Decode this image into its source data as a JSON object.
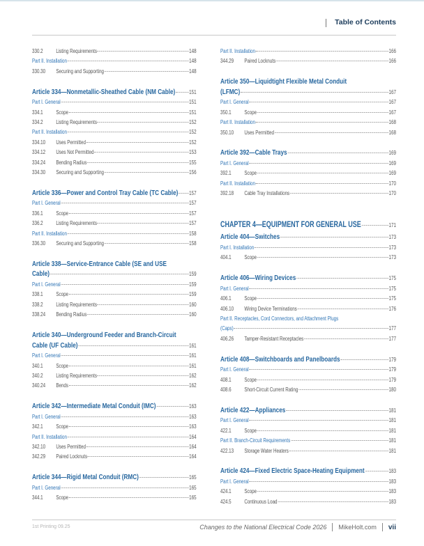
{
  "header": {
    "title": "Table of Contents"
  },
  "left_column": [
    {
      "type": "entry",
      "num": "330.2",
      "title": "Listing Requirements",
      "page": "148"
    },
    {
      "type": "part",
      "title": "Part II. Installation",
      "page": "148"
    },
    {
      "type": "entry",
      "num": "330.30",
      "title": "Securing and Supporting",
      "page": "148"
    },
    {
      "type": "article",
      "lines": [
        "Article 334—Nonmetallic-Sheathed Cable (NM Cable)"
      ],
      "page": "151"
    },
    {
      "type": "part",
      "title": "Part I. General",
      "page": "151"
    },
    {
      "type": "entry",
      "num": "334.1",
      "title": "Scope",
      "page": "151"
    },
    {
      "type": "entry",
      "num": "334.2",
      "title": "Listing Requirements",
      "page": "152"
    },
    {
      "type": "part",
      "title": "Part II. Installation",
      "page": "152"
    },
    {
      "type": "entry",
      "num": "334.10",
      "title": "Uses Permitted",
      "page": "152"
    },
    {
      "type": "entry",
      "num": "334.12",
      "title": "Uses Not Permitted",
      "page": "153"
    },
    {
      "type": "entry",
      "num": "334.24",
      "title": "Bending Radius",
      "page": "155"
    },
    {
      "type": "entry",
      "num": "334.30",
      "title": "Securing and Supporting",
      "page": "156"
    },
    {
      "type": "article",
      "lines": [
        "Article 336—Power and Control Tray Cable (TC Cable)"
      ],
      "page": "157"
    },
    {
      "type": "part",
      "title": "Part I. General",
      "page": "157"
    },
    {
      "type": "entry",
      "num": "336.1",
      "title": "Scope",
      "page": "157"
    },
    {
      "type": "entry",
      "num": "336.2",
      "title": "Listing Requirements",
      "page": "157"
    },
    {
      "type": "part",
      "title": "Part II. Installation",
      "page": "158"
    },
    {
      "type": "entry",
      "num": "336.30",
      "title": "Securing and Supporting",
      "page": "158"
    },
    {
      "type": "article",
      "lines": [
        "Article 338—Service-Entrance Cable (SE and USE",
        "Cable)"
      ],
      "page": "159"
    },
    {
      "type": "part",
      "title": "Part I. General",
      "page": "159"
    },
    {
      "type": "entry",
      "num": "338.1",
      "title": "Scope",
      "page": "159"
    },
    {
      "type": "entry",
      "num": "338.2",
      "title": "Listing Requirements",
      "page": "160"
    },
    {
      "type": "entry",
      "num": "338.24",
      "title": "Bending Radius",
      "page": "160"
    },
    {
      "type": "article",
      "lines": [
        "Article 340—Underground Feeder and Branch-Circuit",
        "Cable (UF Cable)"
      ],
      "page": "161"
    },
    {
      "type": "part",
      "title": "Part I. General",
      "page": "161"
    },
    {
      "type": "entry",
      "num": "340.1",
      "title": "Scope",
      "page": "161"
    },
    {
      "type": "entry",
      "num": "340.2",
      "title": "Listing Requirements",
      "page": "162"
    },
    {
      "type": "entry",
      "num": "340.24",
      "title": "Bends",
      "page": "162"
    },
    {
      "type": "article",
      "lines": [
        "Article 342—Intermediate Metal Conduit (IMC)"
      ],
      "page": "163"
    },
    {
      "type": "part",
      "title": "Part I. General",
      "page": "163"
    },
    {
      "type": "entry",
      "num": "342.1",
      "title": "Scope",
      "page": "163"
    },
    {
      "type": "part",
      "title": "Part II. Installation",
      "page": "164"
    },
    {
      "type": "entry",
      "num": "342.10",
      "title": "Uses Permitted",
      "page": "164"
    },
    {
      "type": "entry",
      "num": "342.29",
      "title": "Paired Locknuts",
      "page": "164"
    },
    {
      "type": "article",
      "lines": [
        "Article 344—Rigid Metal Conduit (RMC)"
      ],
      "page": "165"
    },
    {
      "type": "part",
      "title": "Part I. General",
      "page": "165"
    },
    {
      "type": "entry",
      "num": "344.1",
      "title": "Scope",
      "page": "165"
    }
  ],
  "right_column": [
    {
      "type": "part",
      "title": "Part II. Installation",
      "page": "166"
    },
    {
      "type": "entry",
      "num": "344.29",
      "title": "Paired Locknuts",
      "page": "166"
    },
    {
      "type": "article",
      "lines": [
        "Article 350—Liquidtight Flexible Metal Conduit",
        "(LFMC)"
      ],
      "page": "167"
    },
    {
      "type": "part",
      "title": "Part I. General",
      "page": "167"
    },
    {
      "type": "entry",
      "num": "350.1",
      "title": "Scope",
      "page": "167"
    },
    {
      "type": "part",
      "title": "Part II. Installation",
      "page": "168"
    },
    {
      "type": "entry",
      "num": "350.10",
      "title": "Uses Permitted",
      "page": "168"
    },
    {
      "type": "article",
      "lines": [
        "Article 392—Cable Trays"
      ],
      "page": "169"
    },
    {
      "type": "part",
      "title": "Part I. General",
      "page": "169"
    },
    {
      "type": "entry",
      "num": "392.1",
      "title": "Scope",
      "page": "169"
    },
    {
      "type": "part",
      "title": "Part II. Installation",
      "page": "170"
    },
    {
      "type": "entry",
      "num": "392.18",
      "title": "Cable Tray Installations",
      "page": "170"
    },
    {
      "type": "chapter",
      "title": "CHAPTER 4—EQUIPMENT FOR GENERAL USE",
      "page": "171"
    },
    {
      "type": "article",
      "lines": [
        "Article 404—Switches"
      ],
      "page": "173",
      "nogap": true
    },
    {
      "type": "part",
      "title": "Part I. Installation",
      "page": "173"
    },
    {
      "type": "entry",
      "num": "404.1",
      "title": "Scope",
      "page": "173"
    },
    {
      "type": "article",
      "lines": [
        "Article 406—Wiring Devices"
      ],
      "page": "175"
    },
    {
      "type": "part",
      "title": "Part I. General",
      "page": "175"
    },
    {
      "type": "entry",
      "num": "406.1",
      "title": "Scope",
      "page": "175"
    },
    {
      "type": "entry",
      "num": "406.10",
      "title": "Wiring Device Terminations",
      "page": "176"
    },
    {
      "type": "part",
      "lines": [
        "Part II. Receptacles, Cord Connectors, and Attachment Plugs",
        "(Caps)"
      ],
      "page": "177"
    },
    {
      "type": "entry",
      "num": "406.26",
      "title": "Tamper-Resistant Receptacles",
      "page": "177"
    },
    {
      "type": "article",
      "lines": [
        "Article 408—Switchboards and Panelboards"
      ],
      "page": "179"
    },
    {
      "type": "part",
      "title": "Part I. General",
      "page": "179"
    },
    {
      "type": "entry",
      "num": "408.1",
      "title": "Scope",
      "page": "179"
    },
    {
      "type": "entry",
      "num": "408.6",
      "title": "Short-Circuit Current Rating",
      "page": "180"
    },
    {
      "type": "article",
      "lines": [
        "Article 422—Appliances"
      ],
      "page": "181"
    },
    {
      "type": "part",
      "title": "Part I. General",
      "page": "181"
    },
    {
      "type": "entry",
      "num": "422.1",
      "title": "Scope",
      "page": "181"
    },
    {
      "type": "part",
      "title": "Part II. Branch-Circuit Requirements",
      "page": "181"
    },
    {
      "type": "entry",
      "num": "422.13",
      "title": "Storage Water Heaters",
      "page": "181"
    },
    {
      "type": "article",
      "lines": [
        "Article 424—Fixed Electric Space-Heating Equipment"
      ],
      "page": "183"
    },
    {
      "type": "part",
      "title": "Part I. General",
      "page": "183"
    },
    {
      "type": "entry",
      "num": "424.1",
      "title": "Scope",
      "page": "183"
    },
    {
      "type": "entry",
      "num": "424.5",
      "title": "Continuous Load",
      "page": "183"
    }
  ],
  "footer": {
    "printing": "1st Printing 09.25",
    "book_title": "Changes to the National Electrical Code 2026",
    "site": "MikeHolt.com",
    "page_number": "vii"
  },
  "colors": {
    "heading_blue": "#27679f",
    "part_blue": "#2f74b5",
    "header_navy": "#1d3d5c"
  }
}
